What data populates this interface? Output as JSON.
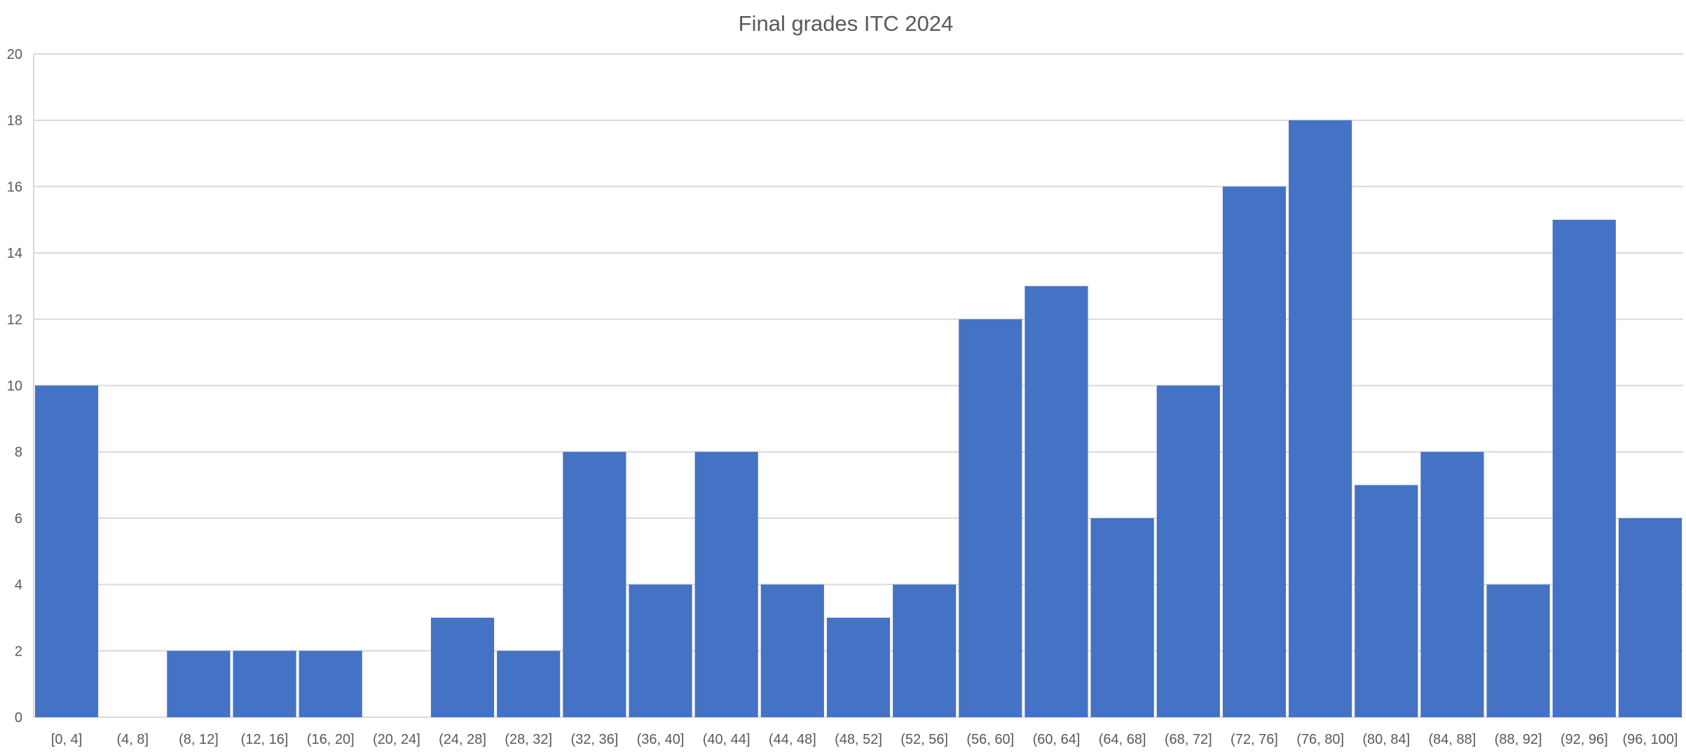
{
  "chart_data": {
    "type": "bar",
    "title": "Final grades ITC 2024",
    "xlabel": "",
    "ylabel": "",
    "categories": [
      "[0, 4]",
      "(4, 8]",
      "(8, 12]",
      "(12, 16]",
      "(16, 20]",
      "(20, 24]",
      "(24, 28]",
      "(28, 32]",
      "(32, 36]",
      "(36, 40]",
      "(40, 44]",
      "(44, 48]",
      "(48, 52]",
      "(52, 56]",
      "(56, 60]",
      "(60, 64]",
      "(64, 68]",
      "(68, 72]",
      "(72, 76]",
      "(76, 80]",
      "(80, 84]",
      "(84, 88]",
      "(88, 92]",
      "(92, 96]",
      "(96, 100]"
    ],
    "values": [
      10,
      0,
      2,
      2,
      2,
      0,
      3,
      2,
      8,
      4,
      8,
      4,
      3,
      4,
      12,
      13,
      6,
      10,
      16,
      18,
      7,
      8,
      4,
      15,
      6
    ],
    "ylim": [
      0,
      20
    ],
    "yticks": [
      "0",
      "2",
      "4",
      "6",
      "8",
      "10",
      "12",
      "14",
      "16",
      "18",
      "20"
    ],
    "grid": true,
    "legend": "none",
    "bar_color": "#4472c4",
    "grid_color": "#d9d9d9",
    "text_color": "#595959"
  }
}
